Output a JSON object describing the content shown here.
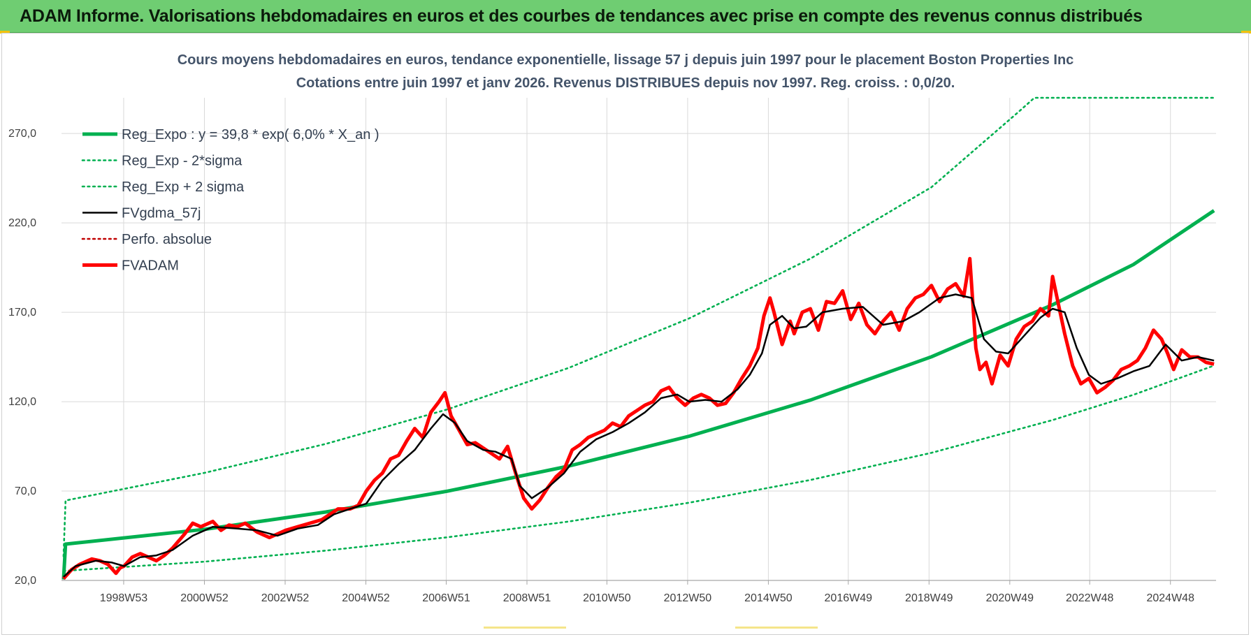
{
  "header": {
    "text": "ADAM Informe. Valorisations hebdomadaires en euros et des courbes de tendances avec prise en compte des revenus connus distribués"
  },
  "colors": {
    "banner": "#6fcd72",
    "reg_expo": "#00b050",
    "fvgdma": "#000000",
    "fvadam": "#ff0000",
    "perfo": "#c00000",
    "grid": "#d9d9d9"
  },
  "chart_data": {
    "type": "line",
    "title": "Cours moyens hebdomadaires en euros, tendance exponentielle, lissage 57 j depuis juin 1997 pour le placement Boston Properties Inc",
    "subtitle": "Cotations entre juin 1997 et janv 2026.  Revenus DISTRIBUES depuis nov 1997. Reg. croiss. : 0,0/20.",
    "ylim": [
      20,
      290
    ],
    "y_ticks": [
      "20,0",
      "70,0",
      "120,0",
      "170,0",
      "220,0",
      "270,0"
    ],
    "y_tick_values": [
      20,
      70,
      120,
      170,
      220,
      270
    ],
    "xlim": [
      1997.45,
      2026.05
    ],
    "x_ticks": [
      "1998W53",
      "2000W52",
      "2002W52",
      "2004W52",
      "2006W51",
      "2008W51",
      "2010W50",
      "2012W50",
      "2014W50",
      "2016W49",
      "2018W49",
      "2020W49",
      "2022W48",
      "2024W48"
    ],
    "x_tick_values": [
      1998.99,
      2000.99,
      2002.99,
      2004.99,
      2006.98,
      2008.98,
      2010.96,
      2012.96,
      2014.96,
      2016.94,
      2018.94,
      2020.94,
      2022.92,
      2024.92
    ],
    "grid": true,
    "legend_position": "top-left",
    "legend": [
      "Reg_Expo : y = 39,8 * exp( 6,0% *  X_an )",
      "Reg_Exp - 2*sigma",
      "Reg_Exp + 2 sigma",
      "FVgdma_57j",
      "Perfo. absolue",
      "FVADAM"
    ],
    "series": [
      {
        "name": "Reg_Expo : y = 39,8 * exp( 6,0% *  X_an )",
        "style": "solid-thick",
        "color": "#00b050",
        "x": [
          1997.5,
          1997.55,
          2001,
          2004,
          2007,
          2010,
          2013,
          2016,
          2019,
          2022,
          2024,
          2026
        ],
        "values": [
          20.5,
          40.3,
          48.6,
          58.3,
          69.9,
          83.9,
          100.7,
          120.9,
          145.1,
          174.2,
          196.7,
          226.9
        ]
      },
      {
        "name": "Reg_Exp - 2*sigma",
        "style": "dotted",
        "color": "#00b050",
        "x": [
          1997.5,
          2001,
          2004,
          2007,
          2010,
          2013,
          2016,
          2019,
          2022,
          2024,
          2026
        ],
        "values": [
          25.3,
          30.5,
          36.7,
          44.1,
          52.9,
          63.5,
          76.2,
          91.4,
          109.7,
          123.8,
          140.2
        ]
      },
      {
        "name": "Reg_Exp + 2 sigma",
        "style": "dotted",
        "color": "#00b050",
        "x": [
          1997.5,
          1997.55,
          2001,
          2004,
          2007,
          2010,
          2013,
          2016,
          2019,
          2021.15,
          2021.55,
          2026
        ],
        "values": [
          33.5,
          64.7,
          80.2,
          96.4,
          115.6,
          138.8,
          166.6,
          200.0,
          240.0,
          282.0,
          290.0,
          290.0
        ]
      },
      {
        "name": "FVgdma_57j",
        "style": "solid",
        "color": "#000000",
        "x": [
          1997.5,
          1997.8,
          1998.3,
          1998.7,
          1999.0,
          1999.4,
          1999.8,
          2000.2,
          2000.7,
          2001.2,
          2001.8,
          2002.3,
          2002.8,
          2003.3,
          2003.8,
          2004.2,
          2004.6,
          2005.0,
          2005.4,
          2005.8,
          2006.2,
          2006.6,
          2006.9,
          2007.2,
          2007.5,
          2007.9,
          2008.2,
          2008.6,
          2008.8,
          2009.1,
          2009.5,
          2009.9,
          2010.3,
          2010.7,
          2011.1,
          2011.5,
          2011.9,
          2012.3,
          2012.7,
          2013.0,
          2013.4,
          2013.8,
          2014.2,
          2014.5,
          2014.8,
          2015.0,
          2015.3,
          2015.6,
          2015.9,
          2016.3,
          2016.8,
          2017.3,
          2017.8,
          2018.3,
          2018.7,
          2019.2,
          2019.6,
          2020.0,
          2020.3,
          2020.6,
          2020.9,
          2021.3,
          2021.7,
          2022.0,
          2022.3,
          2022.6,
          2022.9,
          2023.2,
          2023.6,
          2024.0,
          2024.4,
          2024.8,
          2025.2,
          2025.6,
          2026.0
        ],
        "values": [
          22,
          28,
          31,
          30,
          28,
          33,
          34,
          37,
          45,
          50,
          49,
          48,
          45,
          49,
          51,
          57,
          60,
          63,
          76,
          85,
          93,
          105,
          113,
          108,
          98,
          93,
          92,
          88,
          73,
          66,
          72,
          80,
          92,
          99,
          103,
          108,
          114,
          122,
          124,
          120,
          121,
          120,
          127,
          135,
          147,
          163,
          168,
          161,
          162,
          170,
          172,
          173,
          163,
          165,
          170,
          178,
          180,
          178,
          155,
          148,
          147,
          157,
          167,
          172,
          170,
          150,
          135,
          130,
          133,
          137,
          140,
          152,
          143,
          145,
          143
        ]
      },
      {
        "name": "Perfo. absolue",
        "style": "dotted",
        "color": "#c00000",
        "x": [],
        "values": []
      },
      {
        "name": "FVADAM",
        "style": "solid-thick",
        "color": "#ff0000",
        "x": [
          1997.5,
          1997.7,
          1997.9,
          1998.2,
          1998.4,
          1998.6,
          1998.8,
          1998.9,
          1999.0,
          1999.2,
          1999.4,
          1999.6,
          1999.8,
          2000.0,
          2000.2,
          2000.5,
          2000.7,
          2000.9,
          2001.2,
          2001.4,
          2001.6,
          2001.8,
          2002.0,
          2002.3,
          2002.6,
          2002.8,
          2003.0,
          2003.3,
          2003.6,
          2003.9,
          2004.1,
          2004.3,
          2004.6,
          2004.8,
          2005.0,
          2005.2,
          2005.4,
          2005.6,
          2005.8,
          2006.0,
          2006.2,
          2006.4,
          2006.6,
          2006.8,
          2006.95,
          2007.1,
          2007.3,
          2007.5,
          2007.7,
          2007.9,
          2008.1,
          2008.3,
          2008.5,
          2008.7,
          2008.9,
          2009.1,
          2009.3,
          2009.5,
          2009.7,
          2009.9,
          2010.1,
          2010.3,
          2010.5,
          2010.7,
          2010.9,
          2011.1,
          2011.3,
          2011.5,
          2011.7,
          2011.9,
          2012.1,
          2012.3,
          2012.5,
          2012.7,
          2012.9,
          2013.1,
          2013.3,
          2013.5,
          2013.7,
          2013.9,
          2014.1,
          2014.3,
          2014.5,
          2014.7,
          2014.85,
          2015.0,
          2015.1,
          2015.3,
          2015.5,
          2015.6,
          2015.8,
          2016.0,
          2016.2,
          2016.4,
          2016.6,
          2016.8,
          2017.0,
          2017.2,
          2017.4,
          2017.6,
          2017.8,
          2018.0,
          2018.2,
          2018.4,
          2018.6,
          2018.8,
          2019.0,
          2019.2,
          2019.4,
          2019.6,
          2019.8,
          2019.95,
          2020.1,
          2020.2,
          2020.35,
          2020.5,
          2020.7,
          2020.9,
          2021.1,
          2021.3,
          2021.5,
          2021.7,
          2021.9,
          2022.0,
          2022.15,
          2022.3,
          2022.5,
          2022.7,
          2022.9,
          2023.1,
          2023.3,
          2023.5,
          2023.7,
          2023.9,
          2024.1,
          2024.3,
          2024.5,
          2024.7,
          2024.85,
          2025.0,
          2025.2,
          2025.4,
          2025.6,
          2025.8,
          2026.0
        ],
        "values": [
          21,
          26,
          29,
          32,
          31,
          29,
          24,
          27,
          28,
          33,
          35,
          33,
          31,
          34,
          38,
          46,
          52,
          50,
          53,
          48,
          51,
          50,
          52,
          47,
          44,
          46,
          48,
          50,
          52,
          54,
          57,
          60,
          60,
          62,
          70,
          76,
          80,
          88,
          90,
          98,
          105,
          100,
          114,
          120,
          125,
          112,
          104,
          96,
          97,
          94,
          91,
          88,
          95,
          80,
          66,
          60,
          65,
          72,
          78,
          82,
          93,
          96,
          100,
          102,
          104,
          108,
          106,
          112,
          115,
          118,
          120,
          126,
          128,
          122,
          118,
          122,
          124,
          122,
          118,
          119,
          125,
          133,
          140,
          150,
          168,
          178,
          170,
          152,
          165,
          158,
          170,
          172,
          160,
          176,
          175,
          182,
          166,
          175,
          163,
          158,
          165,
          170,
          160,
          172,
          178,
          180,
          185,
          176,
          183,
          186,
          179,
          200,
          150,
          138,
          142,
          130,
          146,
          140,
          155,
          162,
          165,
          172,
          168,
          190,
          174,
          158,
          140,
          130,
          133,
          125,
          128,
          132,
          138,
          140,
          143,
          150,
          160,
          155,
          147,
          138,
          149,
          145,
          145,
          142,
          141
        ]
      }
    ]
  }
}
